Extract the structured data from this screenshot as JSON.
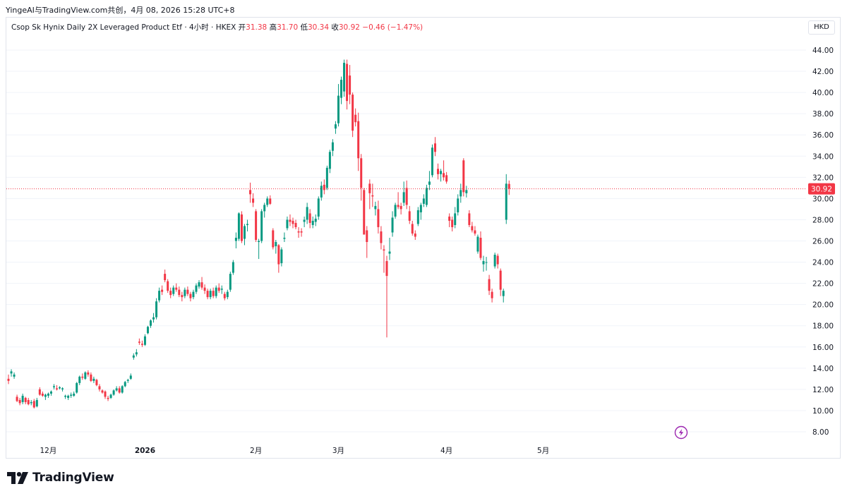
{
  "header": {
    "attribution": "YingeAI与TradingView.com共创，4月 08, 2026 15:28 UTC+8"
  },
  "legend": {
    "symbol": "Csop Sk Hynix Daily 2X Leveraged Product Etf · 4小时 · HKEX",
    "open_label": "开",
    "open": "31.38",
    "high_label": "高",
    "high": "31.70",
    "low_label": "低",
    "low": "30.34",
    "close_label": "收",
    "close": "30.92",
    "change": "−0.46 (−1.47%)"
  },
  "currency": "HKD",
  "brand": "TradingView",
  "colors": {
    "up": "#089981",
    "down": "#f23645",
    "price_line": "#f23645",
    "grid": "#f0f3fa",
    "text": "#131722"
  },
  "chart_data": {
    "type": "candlestick",
    "ylim": [
      7.5,
      45
    ],
    "y_ticks": [
      8,
      10,
      12,
      14,
      16,
      18,
      20,
      22,
      24,
      26,
      28,
      30,
      32,
      34,
      36,
      38,
      40,
      42,
      44
    ],
    "y_tick_labels": [
      "8.00",
      "10.00",
      "12.00",
      "14.00",
      "16.00",
      "18.00",
      "20.00",
      "22.00",
      "24.00",
      "26.00",
      "28.00",
      "30.00",
      "32.00",
      "34.00",
      "36.00",
      "38.00",
      "40.00",
      "42.00",
      "44.00"
    ],
    "x_labels": [
      {
        "label": "12月",
        "index": 14
      },
      {
        "label": "2026",
        "index": 48
      },
      {
        "label": "2月",
        "index": 87
      },
      {
        "label": "3月",
        "index": 116
      },
      {
        "label": "4月",
        "index": 154
      },
      {
        "label": "5月",
        "index": 188
      }
    ],
    "last_price": 30.92,
    "last_price_label": "30.92",
    "candles": [
      [
        13.0,
        13.4,
        12.5,
        12.8
      ],
      [
        13.5,
        13.9,
        13.2,
        13.7
      ],
      [
        13.2,
        13.6,
        13.0,
        13.4
      ],
      [
        11.3,
        11.5,
        10.8,
        10.9
      ],
      [
        11.0,
        11.2,
        10.5,
        10.7
      ],
      [
        10.8,
        11.6,
        10.6,
        11.4
      ],
      [
        11.2,
        11.3,
        10.6,
        10.8
      ],
      [
        11.0,
        11.2,
        10.5,
        10.6
      ],
      [
        10.7,
        11.0,
        10.5,
        10.8
      ],
      [
        10.9,
        11.1,
        10.2,
        10.3
      ],
      [
        10.4,
        11.2,
        10.3,
        11.0
      ],
      [
        12.0,
        12.2,
        11.4,
        11.5
      ],
      [
        11.6,
        11.8,
        11.3,
        11.4
      ],
      [
        11.3,
        11.6,
        11.0,
        11.5
      ],
      [
        11.4,
        11.7,
        11.2,
        11.6
      ],
      [
        11.6,
        11.9,
        11.4,
        11.8
      ],
      [
        12.2,
        12.5,
        12.0,
        12.3
      ],
      [
        12.1,
        12.4,
        11.9,
        12.0
      ],
      [
        12.1,
        12.3,
        12.0,
        12.2
      ],
      [
        12.0,
        12.2,
        11.8,
        12.1
      ],
      [
        11.3,
        11.5,
        11.1,
        11.4
      ],
      [
        11.2,
        11.5,
        11.0,
        11.4
      ],
      [
        11.4,
        11.7,
        11.2,
        11.5
      ],
      [
        11.4,
        11.8,
        11.3,
        11.6
      ],
      [
        11.7,
        12.7,
        11.6,
        12.6
      ],
      [
        12.6,
        13.3,
        12.4,
        13.2
      ],
      [
        13.2,
        13.5,
        12.9,
        13.1
      ],
      [
        13.0,
        13.7,
        12.9,
        13.6
      ],
      [
        13.6,
        13.8,
        13.2,
        13.4
      ],
      [
        13.4,
        13.6,
        12.7,
        12.8
      ],
      [
        12.8,
        13.2,
        12.6,
        13.0
      ],
      [
        12.9,
        13.0,
        12.3,
        12.4
      ],
      [
        12.3,
        12.5,
        11.8,
        12.0
      ],
      [
        11.9,
        12.0,
        11.6,
        11.7
      ],
      [
        11.8,
        11.9,
        11.1,
        11.3
      ],
      [
        11.2,
        11.4,
        10.9,
        11.1
      ],
      [
        11.2,
        11.6,
        11.1,
        11.5
      ],
      [
        11.5,
        12.0,
        11.4,
        11.9
      ],
      [
        11.9,
        12.3,
        11.8,
        12.1
      ],
      [
        12.1,
        12.3,
        11.6,
        11.7
      ],
      [
        11.7,
        12.4,
        11.6,
        12.3
      ],
      [
        12.3,
        12.8,
        12.2,
        12.7
      ],
      [
        12.8,
        13.0,
        12.6,
        12.9
      ],
      [
        13.0,
        13.5,
        12.9,
        13.3
      ],
      [
        15.0,
        15.4,
        14.8,
        15.2
      ],
      [
        15.3,
        15.8,
        15.1,
        15.5
      ],
      [
        16.5,
        16.8,
        16.2,
        16.4
      ],
      [
        16.3,
        16.6,
        16.0,
        16.2
      ],
      [
        16.2,
        17.2,
        16.1,
        17.0
      ],
      [
        17.3,
        18.0,
        17.2,
        17.9
      ],
      [
        18.0,
        18.6,
        17.8,
        18.5
      ],
      [
        18.6,
        19.2,
        18.3,
        18.8
      ],
      [
        18.8,
        20.6,
        18.6,
        20.3
      ],
      [
        20.4,
        21.6,
        20.2,
        21.3
      ],
      [
        21.4,
        21.8,
        20.9,
        21.2
      ],
      [
        22.9,
        23.3,
        22.1,
        22.3
      ],
      [
        22.2,
        22.4,
        21.1,
        21.3
      ],
      [
        21.3,
        21.6,
        20.6,
        20.9
      ],
      [
        21.0,
        21.8,
        20.8,
        21.6
      ],
      [
        21.6,
        22.0,
        21.2,
        21.4
      ],
      [
        21.4,
        21.7,
        20.7,
        20.9
      ],
      [
        20.9,
        21.2,
        20.3,
        20.7
      ],
      [
        20.8,
        21.6,
        20.6,
        21.4
      ],
      [
        21.4,
        21.7,
        20.8,
        21.0
      ],
      [
        21.0,
        21.2,
        20.3,
        20.6
      ],
      [
        20.7,
        21.4,
        20.5,
        21.2
      ],
      [
        21.2,
        22.0,
        21.0,
        21.8
      ],
      [
        21.7,
        22.3,
        21.5,
        22.1
      ],
      [
        22.1,
        22.6,
        21.4,
        21.6
      ],
      [
        21.6,
        21.9,
        21.0,
        21.3
      ],
      [
        21.3,
        21.5,
        20.5,
        20.7
      ],
      [
        20.7,
        21.5,
        20.5,
        21.3
      ],
      [
        21.3,
        21.6,
        20.6,
        20.8
      ],
      [
        20.8,
        21.8,
        20.6,
        21.6
      ],
      [
        21.6,
        22.0,
        21.1,
        21.3
      ],
      [
        21.4,
        21.8,
        21.0,
        21.5
      ],
      [
        21.0,
        21.2,
        20.4,
        20.6
      ],
      [
        20.7,
        21.4,
        20.5,
        21.2
      ],
      [
        21.4,
        23.1,
        21.2,
        22.9
      ],
      [
        23.0,
        24.2,
        22.8,
        24.0
      ],
      [
        26.0,
        26.8,
        25.3,
        26.3
      ],
      [
        26.2,
        28.7,
        26.0,
        28.6
      ],
      [
        28.5,
        28.8,
        25.8,
        26.0
      ],
      [
        26.2,
        27.6,
        25.6,
        27.4
      ],
      [
        27.5,
        28.0,
        26.9,
        27.6
      ],
      [
        30.8,
        31.5,
        29.6,
        30.4
      ],
      [
        30.0,
        30.5,
        29.2,
        29.6
      ],
      [
        28.8,
        29.0,
        25.9,
        26.1
      ],
      [
        25.9,
        26.2,
        24.3,
        26.0
      ],
      [
        26.0,
        29.0,
        25.8,
        28.8
      ],
      [
        28.8,
        29.6,
        28.2,
        29.4
      ],
      [
        29.4,
        30.2,
        29.2,
        30.0
      ],
      [
        30.0,
        30.3,
        29.4,
        29.5
      ],
      [
        27.0,
        27.2,
        25.2,
        25.4
      ],
      [
        25.5,
        26.1,
        24.8,
        25.9
      ],
      [
        25.6,
        25.7,
        23.0,
        23.8
      ],
      [
        23.9,
        25.4,
        23.6,
        25.2
      ],
      [
        26.2,
        26.8,
        25.9,
        26.3
      ],
      [
        27.2,
        28.3,
        27.0,
        28.0
      ],
      [
        28.0,
        28.5,
        27.4,
        27.8
      ],
      [
        27.9,
        28.2,
        27.2,
        27.6
      ],
      [
        27.7,
        28.0,
        27.1,
        27.3
      ],
      [
        26.9,
        27.3,
        26.3,
        26.8
      ],
      [
        26.9,
        27.2,
        26.4,
        26.8
      ],
      [
        27.8,
        28.3,
        27.3,
        28.0
      ],
      [
        28.0,
        29.6,
        27.6,
        29.2
      ],
      [
        28.6,
        29.0,
        27.2,
        27.7
      ],
      [
        27.5,
        28.3,
        27.2,
        27.9
      ],
      [
        27.8,
        28.5,
        27.4,
        28.1
      ],
      [
        28.3,
        30.2,
        28.0,
        30.0
      ],
      [
        30.1,
        31.6,
        29.8,
        31.2
      ],
      [
        31.3,
        31.8,
        30.4,
        30.8
      ],
      [
        31.0,
        33.1,
        30.8,
        32.9
      ],
      [
        32.8,
        34.6,
        32.4,
        34.4
      ],
      [
        34.5,
        35.6,
        34.0,
        35.3
      ],
      [
        36.6,
        37.3,
        36.1,
        37.0
      ],
      [
        37.1,
        40.8,
        36.8,
        39.7
      ],
      [
        39.5,
        41.5,
        38.9,
        41.2
      ],
      [
        40.1,
        43.1,
        39.6,
        42.8
      ],
      [
        42.7,
        43.1,
        38.4,
        39.2
      ],
      [
        41.6,
        42.6,
        38.9,
        39.8
      ],
      [
        39.8,
        40.0,
        35.8,
        36.4
      ],
      [
        37.9,
        38.5,
        36.8,
        37.2
      ],
      [
        37.3,
        38.1,
        32.6,
        33.8
      ],
      [
        33.8,
        34.2,
        29.8,
        31.0
      ],
      [
        30.8,
        31.0,
        26.6,
        26.6
      ],
      [
        27.0,
        27.4,
        24.4,
        25.9
      ],
      [
        31.4,
        31.8,
        29.0,
        30.5
      ],
      [
        30.3,
        31.4,
        29.2,
        30.2
      ],
      [
        29.0,
        29.7,
        28.4,
        29.3
      ],
      [
        29.0,
        29.8,
        26.7,
        27.3
      ],
      [
        26.9,
        27.4,
        25.2,
        25.8
      ],
      [
        25.2,
        25.6,
        23.0,
        25.1
      ],
      [
        24.1,
        24.6,
        16.9,
        22.7
      ],
      [
        24.8,
        26.3,
        24.2,
        25.0
      ],
      [
        26.8,
        28.8,
        26.4,
        28.2
      ],
      [
        28.3,
        29.6,
        28.1,
        29.4
      ],
      [
        29.4,
        30.6,
        29.0,
        29.2
      ],
      [
        29.3,
        29.6,
        28.5,
        29.0
      ],
      [
        29.6,
        31.6,
        29.3,
        30.6
      ],
      [
        31.0,
        31.7,
        29.0,
        29.4
      ],
      [
        28.8,
        29.3,
        27.6,
        27.9
      ],
      [
        27.6,
        27.9,
        26.5,
        26.7
      ],
      [
        26.7,
        27.0,
        26.1,
        26.4
      ],
      [
        27.6,
        29.2,
        27.4,
        28.9
      ],
      [
        28.7,
        29.6,
        28.0,
        29.4
      ],
      [
        29.5,
        30.4,
        29.2,
        30.0
      ],
      [
        29.4,
        31.3,
        29.2,
        31.0
      ],
      [
        31.3,
        32.6,
        30.8,
        31.6
      ],
      [
        32.2,
        35.1,
        32.0,
        34.8
      ],
      [
        35.2,
        35.8,
        34.0,
        34.4
      ],
      [
        32.8,
        33.3,
        31.8,
        32.3
      ],
      [
        32.3,
        32.8,
        31.6,
        32.6
      ],
      [
        32.4,
        33.6,
        31.7,
        32.0
      ],
      [
        32.2,
        32.5,
        31.4,
        31.6
      ],
      [
        28.3,
        28.6,
        27.3,
        27.9
      ],
      [
        28.0,
        28.3,
        26.9,
        27.3
      ],
      [
        27.5,
        29.2,
        27.2,
        28.6
      ],
      [
        28.7,
        30.4,
        28.4,
        30.0
      ],
      [
        30.2,
        31.4,
        29.6,
        30.8
      ],
      [
        33.6,
        33.8,
        30.2,
        30.6
      ],
      [
        30.5,
        31.2,
        30.1,
        30.8
      ],
      [
        28.6,
        28.9,
        27.3,
        27.5
      ],
      [
        27.4,
        27.8,
        26.8,
        27.0
      ],
      [
        27.0,
        27.4,
        26.5,
        26.7
      ],
      [
        25.0,
        26.6,
        24.8,
        26.4
      ],
      [
        26.3,
        26.9,
        24.2,
        24.4
      ],
      [
        23.8,
        24.6,
        23.1,
        24.1
      ],
      [
        24.0,
        24.5,
        23.2,
        24.0
      ],
      [
        22.4,
        22.8,
        20.9,
        21.3
      ],
      [
        21.2,
        21.5,
        20.2,
        20.6
      ],
      [
        23.6,
        24.9,
        23.4,
        24.7
      ],
      [
        24.6,
        24.8,
        23.4,
        23.8
      ],
      [
        23.2,
        23.4,
        20.8,
        21.4
      ],
      [
        20.8,
        21.5,
        20.2,
        21.3
      ],
      [
        28.0,
        32.3,
        27.6,
        31.4
      ],
      [
        31.38,
        31.7,
        30.34,
        30.92
      ]
    ]
  }
}
